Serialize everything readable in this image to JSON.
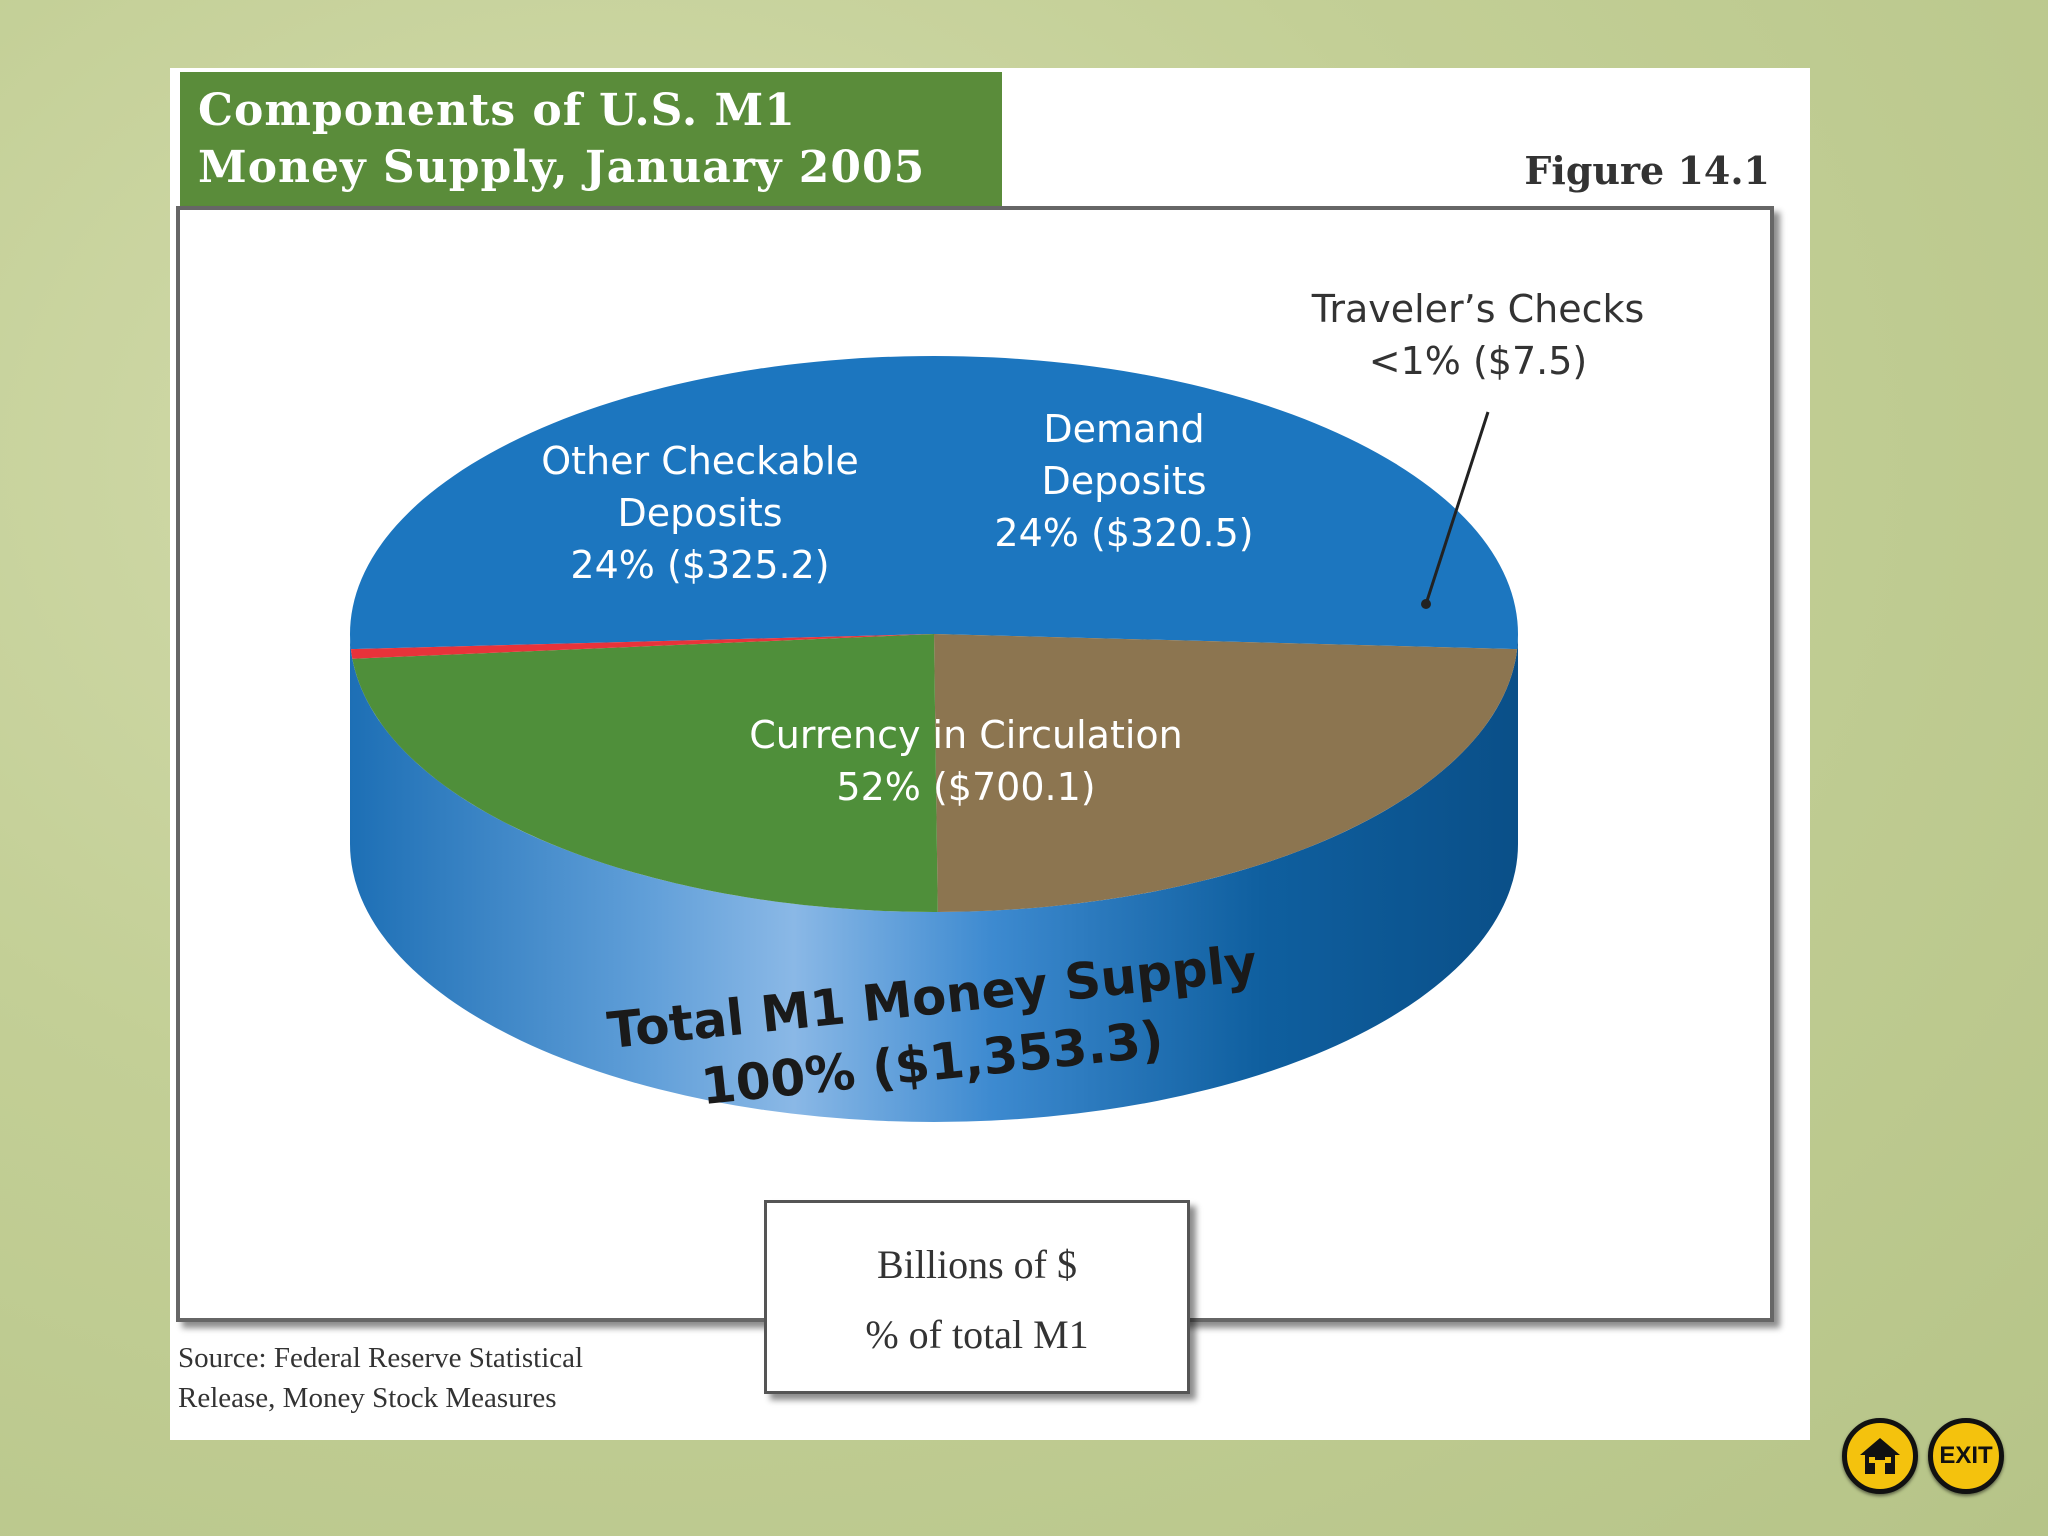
{
  "title": {
    "line1": "Components of U.S. M1",
    "line2": "Money Supply, January 2005"
  },
  "figure_label": "Figure 14.1",
  "legend": {
    "line1": "Billions of $",
    "line2": "% of total M1"
  },
  "source": {
    "line1": "Source: Federal Reserve Statistical",
    "line2": "Release, Money Stock Measures"
  },
  "nav": {
    "home_icon": "home-icon",
    "exit_label": "EXIT"
  },
  "chart_data": {
    "type": "pie",
    "style": "3d",
    "unit": "Billions of $",
    "total": {
      "label": "Total M1 Money Supply",
      "value_text": "100% ($1,353.3)",
      "value": 1353.3,
      "percent": 100
    },
    "slices": [
      {
        "label": "Currency in Circulation",
        "percent_text": "52%",
        "value": 700.1,
        "value_text": "($700.1)",
        "color": "#1c76bf"
      },
      {
        "label": "Other Checkable Deposits",
        "label_lines": [
          "Other Checkable",
          "Deposits"
        ],
        "percent_text": "24%",
        "value": 325.2,
        "value_text": "($325.2)",
        "color": "#8c7550"
      },
      {
        "label": "Demand Deposits",
        "label_lines": [
          "Demand",
          "Deposits"
        ],
        "percent_text": "24%",
        "value": 320.5,
        "value_text": "($320.5)",
        "color": "#4f8f3a"
      },
      {
        "label": "Traveler’s Checks",
        "percent_text": "<1%",
        "value": 7.5,
        "value_text": "($7.5)",
        "color": "#e8333a"
      }
    ]
  }
}
